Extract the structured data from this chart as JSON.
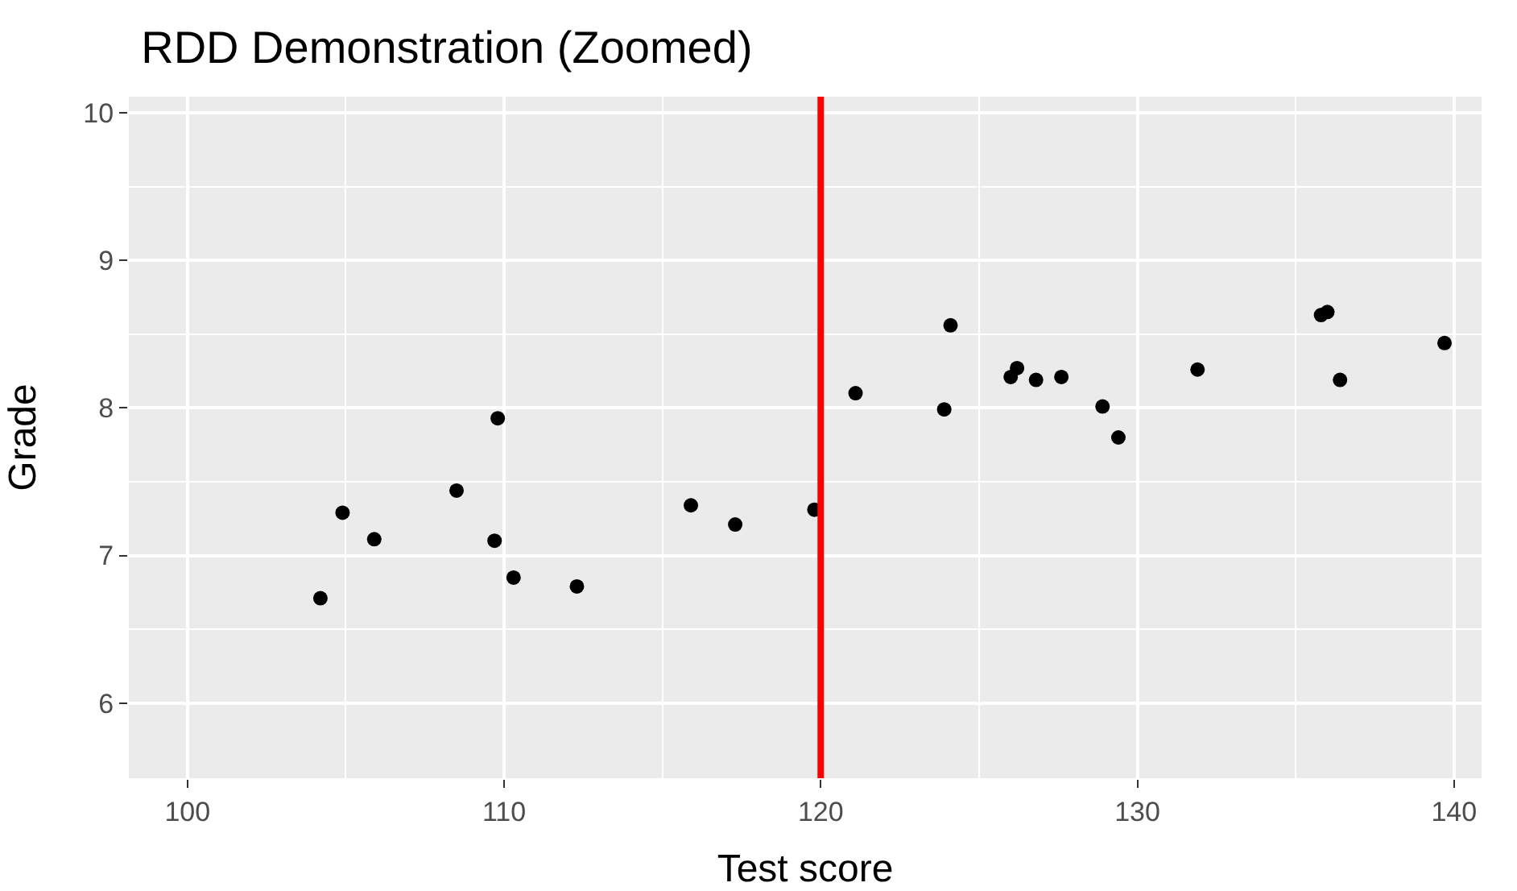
{
  "chart_data": {
    "type": "scatter",
    "title": "RDD Demonstration (Zoomed)",
    "xlabel": "Test score",
    "ylabel": "Grade",
    "x": [
      104.2,
      104.9,
      105.9,
      108.5,
      109.8,
      109.7,
      110.3,
      112.3,
      115.9,
      117.3,
      119.8,
      121.1,
      123.9,
      124.1,
      126.0,
      126.2,
      126.8,
      127.6,
      128.9,
      129.4,
      131.9,
      135.8,
      136.0,
      136.4,
      139.7
    ],
    "series": [
      {
        "color": "#000000",
        "values": [
          6.71,
          7.29,
          7.11,
          7.44,
          7.93,
          7.1,
          6.85,
          6.79,
          7.34,
          7.21,
          7.31,
          8.1,
          7.99,
          8.56,
          8.21,
          8.27,
          8.19,
          8.21,
          8.01,
          7.8,
          8.26,
          8.63,
          8.65,
          8.19,
          8.44
        ]
      }
    ],
    "xlim": [
      98.15,
      140.87
    ],
    "ylim": [
      5.49,
      10.11
    ],
    "xticks": [
      100,
      110,
      120,
      130,
      140
    ],
    "yticks": [
      6,
      7,
      8,
      9,
      10
    ],
    "ref_lines": [
      {
        "axis": "x",
        "value": 120,
        "color": "#ff0000",
        "line_style": "solid"
      }
    ],
    "grid": true,
    "marker": "circle"
  }
}
